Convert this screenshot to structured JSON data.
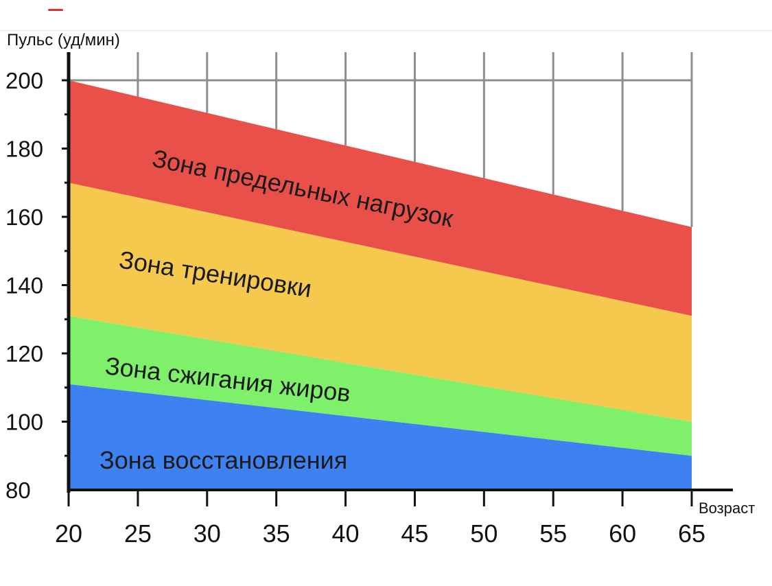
{
  "chart_data": {
    "type": "area",
    "ylabel": "Пульс (уд/мин)",
    "xlabel": "Возраст",
    "xlim": [
      20,
      65
    ],
    "ylim": [
      80,
      200
    ],
    "x_ticks": [
      20,
      25,
      30,
      35,
      40,
      45,
      50,
      55,
      60,
      65
    ],
    "y_ticks": [
      80,
      100,
      120,
      140,
      160,
      180,
      200
    ],
    "grid": true,
    "zones": [
      {
        "label": "Зона восстановления",
        "color": "#3d82f0",
        "lower": [
          80,
          80
        ],
        "upper": [
          111,
          90
        ]
      },
      {
        "label": "Зона сжигания жиров",
        "color": "#7ef06a",
        "lower": [
          111,
          90
        ],
        "upper": [
          131,
          100
        ]
      },
      {
        "label": "Зона тренировки",
        "color": "#f5c84e",
        "lower": [
          131,
          100
        ],
        "upper": [
          170,
          131
        ]
      },
      {
        "label": "Зона предельных нагрузок",
        "color": "#e9504a",
        "lower": [
          170,
          131
        ],
        "upper": [
          200,
          157
        ]
      }
    ]
  }
}
